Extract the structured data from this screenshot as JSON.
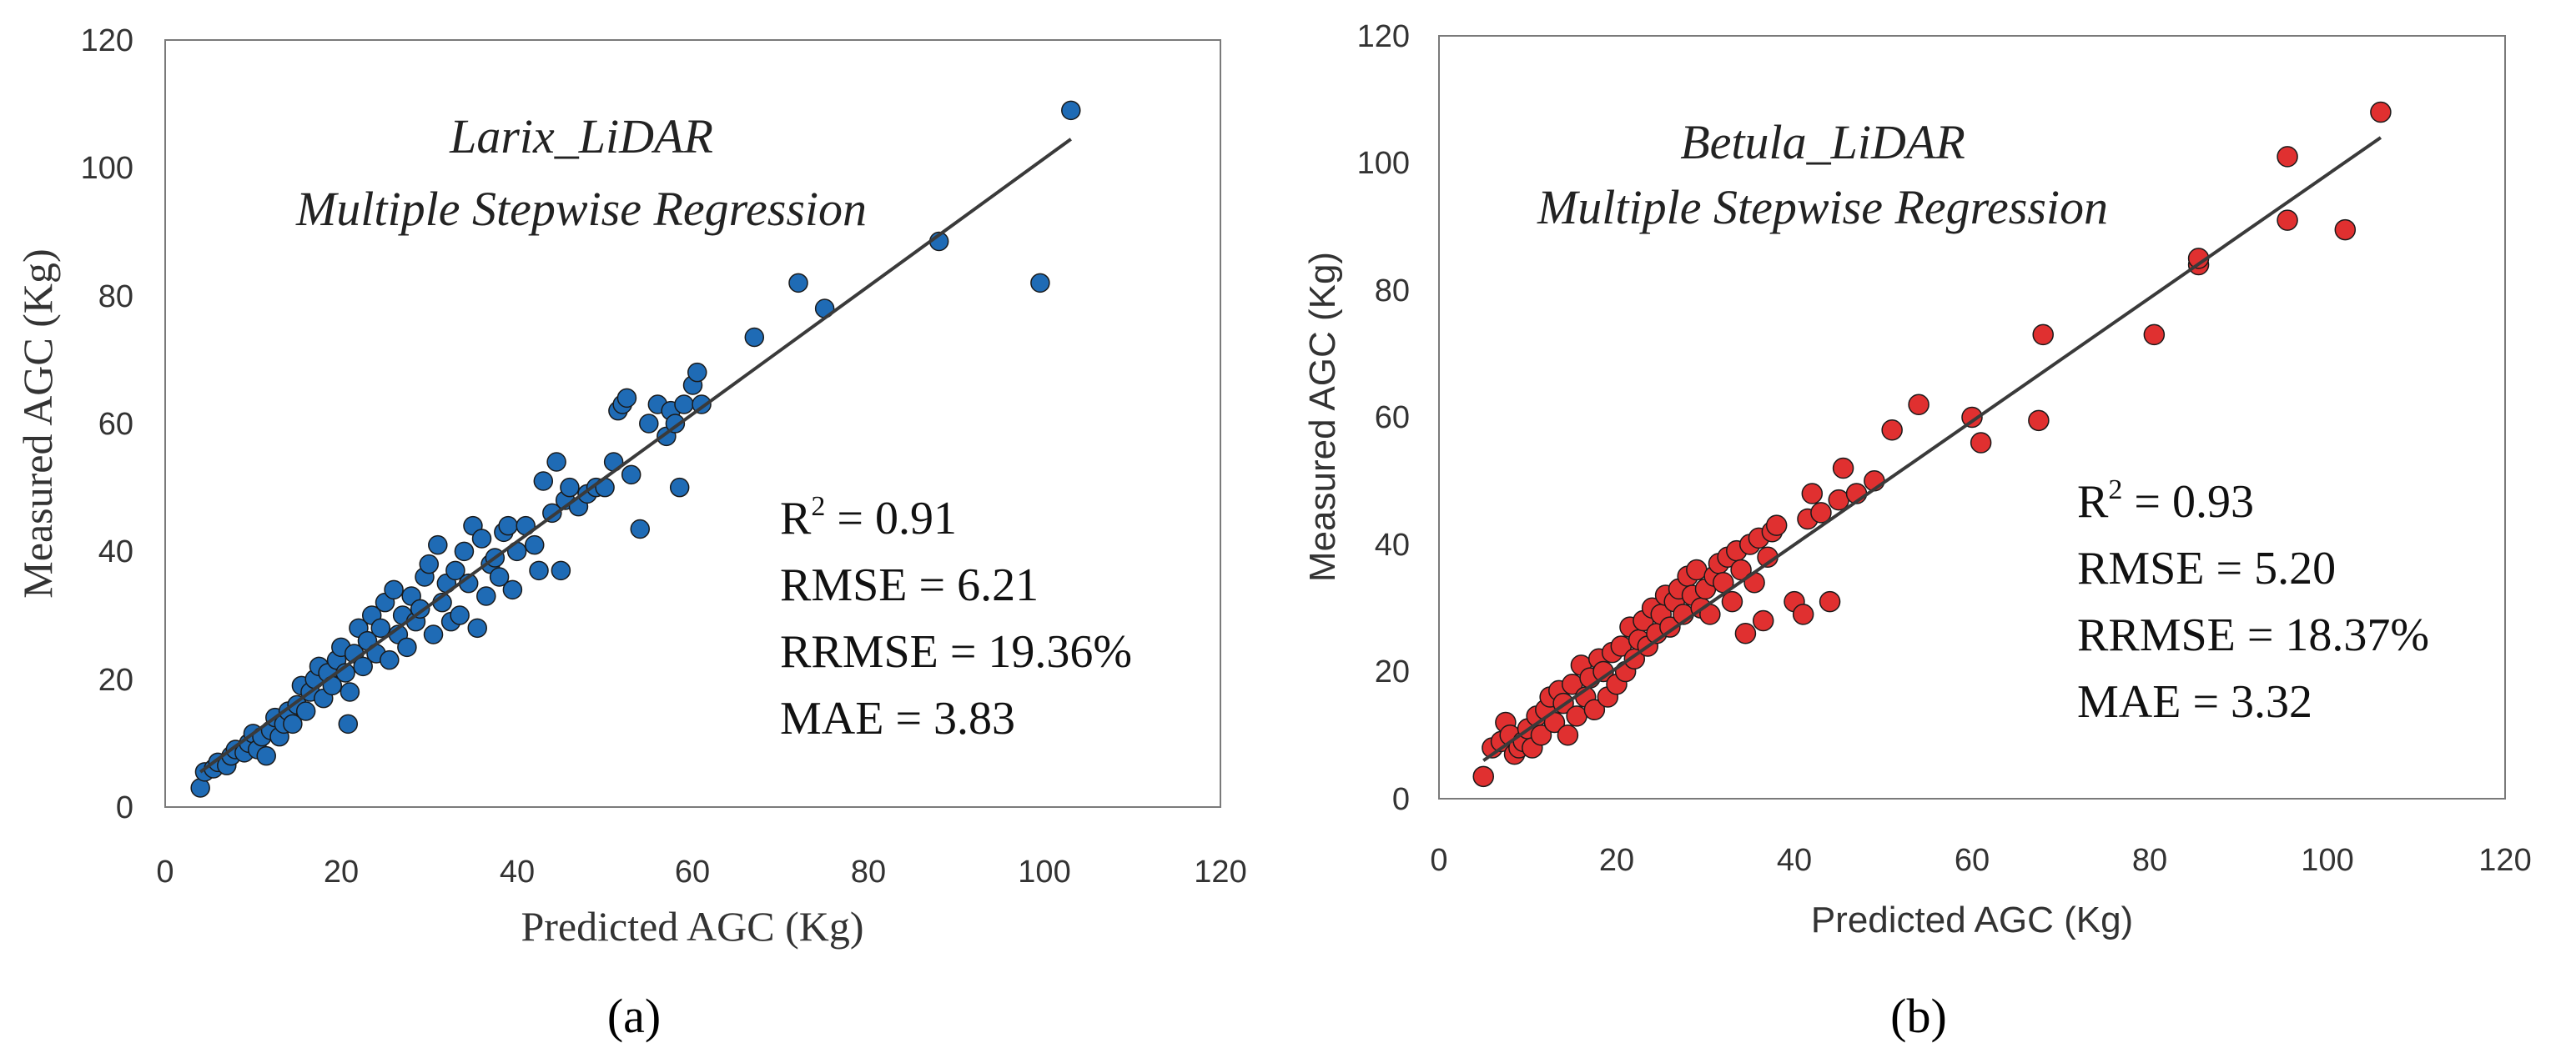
{
  "chart_data": [
    {
      "type": "scatter",
      "panel_label": "(a)",
      "title": [
        "Larix_LiDAR",
        "Multiple Stepwise Regression"
      ],
      "xlabel": "Predicted AGC (Kg)",
      "ylabel": "Measured AGC (Kg)",
      "xlim": [
        0,
        120
      ],
      "ylim": [
        0,
        120
      ],
      "xticks": [
        "0",
        "20",
        "40",
        "60",
        "80",
        "100",
        "120"
      ],
      "yticks": [
        "0",
        "20",
        "40",
        "60",
        "80",
        "100",
        "120"
      ],
      "marker_color": "#1f6bb5",
      "line_color": "#3a3a3a",
      "fit_line": [
        [
          4,
          5.5
        ],
        [
          103,
          104.5
        ]
      ],
      "stats": {
        "r2_prefix": "R",
        "r2_sup": "2",
        "r2_value": " = 0.91",
        "rmse": "RMSE = 6.21",
        "rrmse": "RRMSE = 19.36%",
        "mae": "MAE = 3.83"
      },
      "points": [
        [
          4,
          3
        ],
        [
          4.5,
          5.5
        ],
        [
          5.5,
          6
        ],
        [
          6,
          7
        ],
        [
          7,
          6.5
        ],
        [
          7.5,
          8
        ],
        [
          8,
          9
        ],
        [
          9,
          8.5
        ],
        [
          9.5,
          10
        ],
        [
          10,
          11.5
        ],
        [
          10.5,
          9
        ],
        [
          11,
          11
        ],
        [
          11.5,
          8
        ],
        [
          12,
          12
        ],
        [
          12.5,
          14
        ],
        [
          13,
          11
        ],
        [
          13.5,
          13
        ],
        [
          14,
          15
        ],
        [
          14.5,
          13
        ],
        [
          15,
          16
        ],
        [
          15.5,
          19
        ],
        [
          16,
          15
        ],
        [
          16.5,
          18
        ],
        [
          17,
          20
        ],
        [
          17.5,
          22
        ],
        [
          18,
          17
        ],
        [
          18.5,
          21
        ],
        [
          19,
          19
        ],
        [
          19.5,
          23
        ],
        [
          20,
          25
        ],
        [
          20.5,
          21
        ],
        [
          20.8,
          13
        ],
        [
          21,
          18
        ],
        [
          21.5,
          24
        ],
        [
          22,
          28
        ],
        [
          22.5,
          22
        ],
        [
          23,
          26
        ],
        [
          23.5,
          30
        ],
        [
          24,
          24
        ],
        [
          24.5,
          28
        ],
        [
          25,
          32
        ],
        [
          25.5,
          23
        ],
        [
          26,
          34
        ],
        [
          26.5,
          27
        ],
        [
          27,
          30
        ],
        [
          27.5,
          25
        ],
        [
          28,
          33
        ],
        [
          28.5,
          29
        ],
        [
          29,
          31
        ],
        [
          29.5,
          36
        ],
        [
          30,
          38
        ],
        [
          30.5,
          27
        ],
        [
          31,
          41
        ],
        [
          31.5,
          32
        ],
        [
          32,
          35
        ],
        [
          32.5,
          29
        ],
        [
          33,
          37
        ],
        [
          33.5,
          30
        ],
        [
          34,
          40
        ],
        [
          34.5,
          35
        ],
        [
          35,
          44
        ],
        [
          35.5,
          28
        ],
        [
          36,
          42
        ],
        [
          36.5,
          33
        ],
        [
          37,
          38
        ],
        [
          37.5,
          39
        ],
        [
          38,
          36
        ],
        [
          38.5,
          43
        ],
        [
          39,
          44
        ],
        [
          39.5,
          34
        ],
        [
          40,
          40
        ],
        [
          41,
          44
        ],
        [
          42,
          41
        ],
        [
          42.5,
          37
        ],
        [
          43,
          51
        ],
        [
          44,
          46
        ],
        [
          44.5,
          54
        ],
        [
          45,
          37
        ],
        [
          45.5,
          48
        ],
        [
          46,
          50
        ],
        [
          47,
          47
        ],
        [
          48,
          49
        ],
        [
          49,
          50
        ],
        [
          50,
          50
        ],
        [
          51,
          54
        ],
        [
          51.5,
          62
        ],
        [
          52,
          63
        ],
        [
          52.5,
          64
        ],
        [
          53,
          52
        ],
        [
          54,
          43.5
        ],
        [
          55,
          60
        ],
        [
          56,
          63
        ],
        [
          57,
          58
        ],
        [
          57.5,
          62
        ],
        [
          58,
          60
        ],
        [
          58.5,
          50
        ],
        [
          59,
          63
        ],
        [
          60,
          66
        ],
        [
          60.5,
          68
        ],
        [
          61,
          63
        ],
        [
          67,
          73.5
        ],
        [
          72,
          82
        ],
        [
          75,
          78
        ],
        [
          88,
          88.5
        ],
        [
          99.5,
          82
        ],
        [
          103,
          109
        ]
      ]
    },
    {
      "type": "scatter",
      "panel_label": "(b)",
      "title": [
        "Betula_LiDAR",
        "Multiple Stepwise Regression"
      ],
      "xlabel": "Predicted AGC (Kg)",
      "ylabel": "Measured AGC (Kg)",
      "xlim": [
        0,
        120
      ],
      "ylim": [
        0,
        120
      ],
      "xticks": [
        "0",
        "20",
        "40",
        "60",
        "80",
        "100",
        "120"
      ],
      "yticks": [
        "0",
        "20",
        "40",
        "60",
        "80",
        "100",
        "120"
      ],
      "marker_color": "#e03030",
      "line_color": "#3a3a3a",
      "fit_line": [
        [
          5,
          6
        ],
        [
          106,
          104
        ]
      ],
      "stats": {
        "r2_prefix": "R",
        "r2_sup": "2",
        "r2_value": " = 0.93",
        "rmse": "RMSE = 5.20",
        "rrmse": "RRMSE = 18.37%",
        "mae": "MAE = 3.32"
      },
      "points": [
        [
          5,
          3.5
        ],
        [
          6,
          8
        ],
        [
          7,
          9
        ],
        [
          7.5,
          12
        ],
        [
          8,
          10
        ],
        [
          8.5,
          7
        ],
        [
          9,
          8
        ],
        [
          9.5,
          9
        ],
        [
          10,
          11
        ],
        [
          10.5,
          8
        ],
        [
          11,
          13
        ],
        [
          11.5,
          10
        ],
        [
          12,
          14
        ],
        [
          12.5,
          16
        ],
        [
          13,
          12
        ],
        [
          13.5,
          17
        ],
        [
          14,
          15
        ],
        [
          14.5,
          10
        ],
        [
          15,
          18
        ],
        [
          15.5,
          13
        ],
        [
          16,
          21
        ],
        [
          16.5,
          16
        ],
        [
          17,
          19
        ],
        [
          17.5,
          14
        ],
        [
          18,
          22
        ],
        [
          18.5,
          20
        ],
        [
          19,
          16
        ],
        [
          19.5,
          23
        ],
        [
          20,
          18
        ],
        [
          20.5,
          24
        ],
        [
          21,
          20
        ],
        [
          21.5,
          27
        ],
        [
          22,
          22
        ],
        [
          22.5,
          25
        ],
        [
          23,
          28
        ],
        [
          23.5,
          24
        ],
        [
          24,
          30
        ],
        [
          24.5,
          26
        ],
        [
          25,
          29
        ],
        [
          25.5,
          32
        ],
        [
          26,
          27
        ],
        [
          26.5,
          31
        ],
        [
          27,
          33
        ],
        [
          27.5,
          29
        ],
        [
          28,
          35
        ],
        [
          28.5,
          32
        ],
        [
          29,
          36
        ],
        [
          29.5,
          30
        ],
        [
          30,
          33
        ],
        [
          30.5,
          29
        ],
        [
          31,
          35
        ],
        [
          31.5,
          37
        ],
        [
          32,
          34
        ],
        [
          32.5,
          38
        ],
        [
          33,
          31
        ],
        [
          33.5,
          39
        ],
        [
          34,
          36
        ],
        [
          34.5,
          26
        ],
        [
          35,
          40
        ],
        [
          35.5,
          34
        ],
        [
          36,
          41
        ],
        [
          36.5,
          28
        ],
        [
          37,
          38
        ],
        [
          37.5,
          42
        ],
        [
          38,
          43
        ],
        [
          40,
          31
        ],
        [
          41,
          29
        ],
        [
          41.5,
          44
        ],
        [
          42,
          48
        ],
        [
          43,
          45
        ],
        [
          44,
          31
        ],
        [
          45,
          47
        ],
        [
          45.5,
          52
        ],
        [
          47,
          48
        ],
        [
          49,
          50
        ],
        [
          51,
          58
        ],
        [
          54,
          62
        ],
        [
          60,
          60
        ],
        [
          61,
          56
        ],
        [
          67.5,
          59.5
        ],
        [
          68,
          73
        ],
        [
          80.5,
          73
        ],
        [
          85.5,
          84
        ],
        [
          85.5,
          85
        ],
        [
          95.5,
          101
        ],
        [
          95.5,
          91
        ],
        [
          102,
          89.5
        ],
        [
          106,
          108
        ]
      ]
    }
  ]
}
